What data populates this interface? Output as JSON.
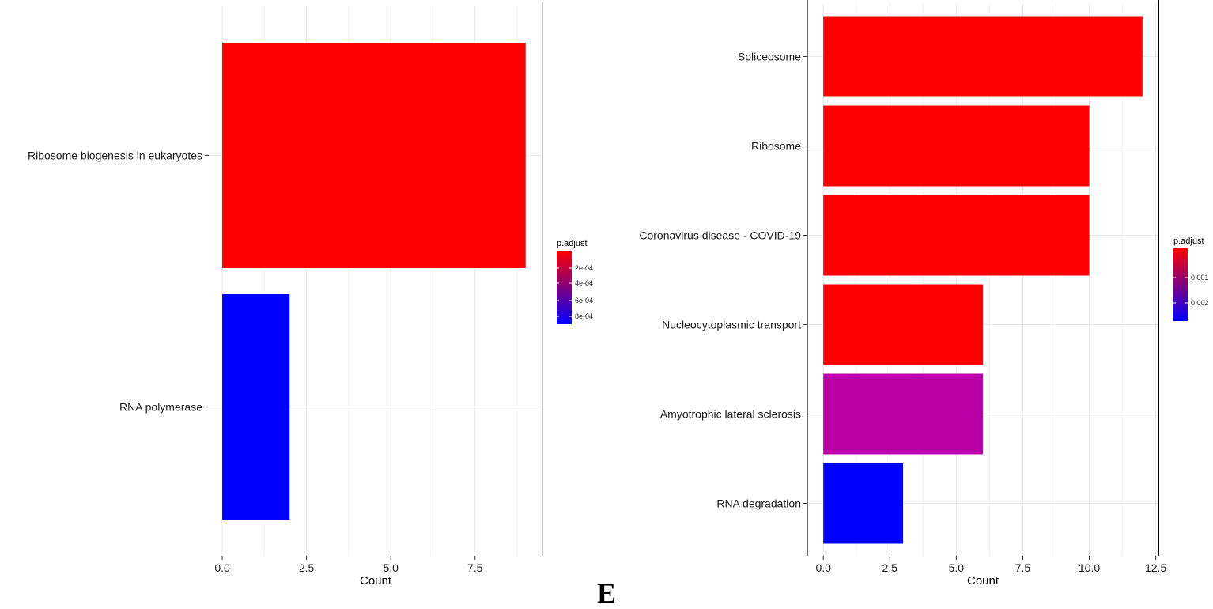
{
  "panel_label": "E",
  "chart_data": [
    {
      "type": "bar",
      "orientation": "horizontal",
      "categories": [
        "Ribosome biogenesis in eukaryotes",
        "RNA polymerase"
      ],
      "values": [
        9,
        2
      ],
      "colors": [
        "#ff0000",
        "#0000ff"
      ],
      "xlabel": "Count",
      "ylabel": "",
      "xlim": [
        -0.4,
        9.5
      ],
      "xticks": [
        0.0,
        2.5,
        5.0,
        7.5
      ],
      "xtick_labels": [
        "0.0",
        "2.5",
        "5.0",
        "7.5"
      ],
      "grid": true,
      "legend": {
        "title": "p.adjust",
        "placement": "right",
        "labels": [
          "2e-04",
          "4e-04",
          "6e-04",
          "8e-04"
        ],
        "gradient": [
          "#ff0000",
          "#0000ff"
        ]
      }
    },
    {
      "type": "bar",
      "orientation": "horizontal",
      "categories": [
        "Spliceosome",
        "Ribosome",
        "Coronavirus disease - COVID-19",
        "Nucleocytoplasmic transport",
        "Amyotrophic lateral sclerosis",
        "RNA degradation"
      ],
      "values": [
        12,
        10,
        10,
        6,
        6,
        3
      ],
      "colors": [
        "#ff0000",
        "#ff0000",
        "#ff0000",
        "#ff0000",
        "#b800a6",
        "#0000ff"
      ],
      "xlabel": "Count",
      "ylabel": "",
      "xlim": [
        -0.6,
        12.6
      ],
      "xticks": [
        0.0,
        2.5,
        5.0,
        7.5,
        10.0,
        12.5
      ],
      "xtick_labels": [
        "0.0",
        "2.5",
        "5.0",
        "7.5",
        "10.0",
        "12.5"
      ],
      "grid": true,
      "legend": {
        "title": "p.adjust",
        "placement": "right",
        "labels": [
          "0.001",
          "0.002"
        ],
        "gradient": [
          "#ff0000",
          "#0000ff"
        ]
      }
    }
  ]
}
